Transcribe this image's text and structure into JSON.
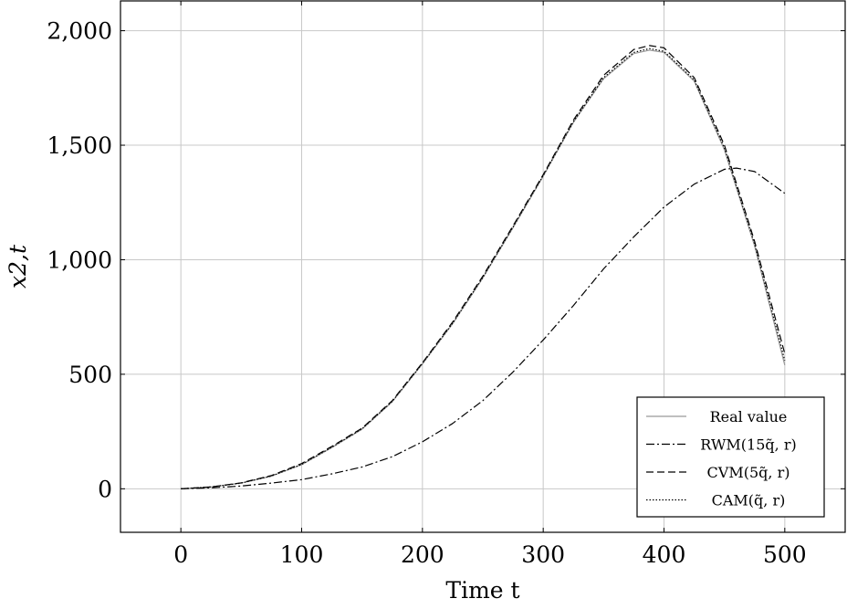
{
  "chart_data": {
    "type": "line",
    "xlabel": "Time t",
    "ylabel": "x2,t",
    "xlim": [
      -50,
      550
    ],
    "ylim": [
      -190,
      2130
    ],
    "xticks": [
      0,
      100,
      200,
      300,
      400,
      500
    ],
    "yticks": [
      0,
      500,
      1000,
      1500,
      2000
    ],
    "xtick_labels": [
      "0",
      "100",
      "200",
      "300",
      "400",
      "500"
    ],
    "ytick_labels": [
      "0",
      "500",
      "1,000",
      "1,500",
      "2,000"
    ],
    "grid": true,
    "legend_position": "bottom-right",
    "series": [
      {
        "name": "Real value",
        "style": "solid",
        "color": "#999999",
        "x": [
          0,
          25,
          50,
          75,
          100,
          125,
          150,
          175,
          200,
          225,
          250,
          275,
          300,
          325,
          350,
          375,
          388,
          400,
          425,
          450,
          475,
          500
        ],
        "y": [
          0,
          8,
          25,
          55,
          105,
          180,
          260,
          380,
          545,
          720,
          920,
          1140,
          1365,
          1600,
          1790,
          1900,
          1915,
          1905,
          1780,
          1480,
          1060,
          540
        ]
      },
      {
        "name": "RWM(15q̃, r)",
        "style": "dashdot",
        "color": "#000000",
        "x": [
          0,
          25,
          50,
          75,
          100,
          125,
          150,
          175,
          200,
          225,
          250,
          275,
          300,
          325,
          350,
          375,
          400,
          425,
          450,
          460,
          475,
          500
        ],
        "y": [
          0,
          4,
          12,
          25,
          40,
          65,
          95,
          140,
          205,
          285,
          385,
          510,
          650,
          800,
          960,
          1100,
          1230,
          1330,
          1395,
          1400,
          1385,
          1290
        ]
      },
      {
        "name": "CVM(5q̃, r)",
        "style": "dashed",
        "color": "#000000",
        "x": [
          0,
          25,
          50,
          75,
          100,
          125,
          150,
          175,
          200,
          225,
          250,
          275,
          300,
          325,
          350,
          375,
          388,
          400,
          425,
          450,
          475,
          500
        ],
        "y": [
          0,
          8,
          26,
          58,
          110,
          185,
          265,
          385,
          550,
          728,
          928,
          1148,
          1372,
          1610,
          1805,
          1918,
          1935,
          1925,
          1795,
          1500,
          1080,
          590
        ]
      },
      {
        "name": "CAM(q̃, r)",
        "style": "dotted",
        "color": "#000000",
        "x": [
          0,
          25,
          50,
          75,
          100,
          125,
          150,
          175,
          200,
          225,
          250,
          275,
          300,
          325,
          350,
          375,
          388,
          400,
          425,
          450,
          475,
          500
        ],
        "y": [
          0,
          8,
          25,
          56,
          106,
          182,
          262,
          382,
          547,
          723,
          923,
          1143,
          1368,
          1603,
          1795,
          1905,
          1922,
          1910,
          1785,
          1488,
          1068,
          560
        ]
      }
    ]
  }
}
